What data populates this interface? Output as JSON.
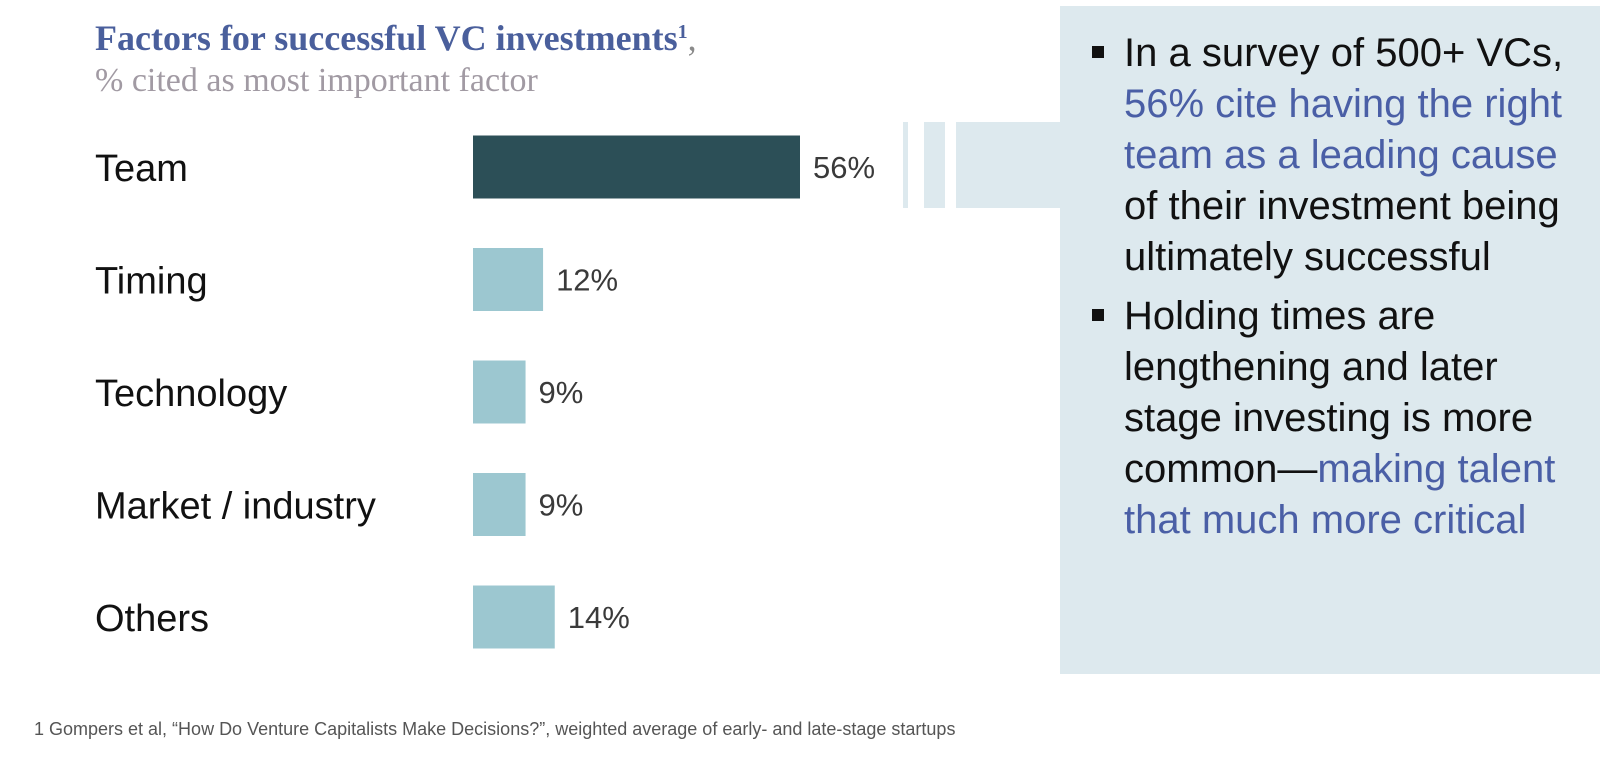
{
  "title": {
    "main": "Factors for successful VC investments",
    "footnote_marker": "1",
    "trailing": ",",
    "subtitle": "% cited as most important factor"
  },
  "chart_data": {
    "type": "bar",
    "orientation": "horizontal",
    "title": "Factors for successful VC investments",
    "subtitle": "% cited as most important factor",
    "categories": [
      "Team",
      "Timing",
      "Technology",
      "Market / industry",
      "Others"
    ],
    "values": [
      56,
      12,
      9,
      9,
      14
    ],
    "value_labels": [
      "56%",
      "12%",
      "9%",
      "9%",
      "14%"
    ],
    "unit": "%",
    "xlim": [
      0,
      56
    ],
    "colors": [
      "#2c4f57",
      "#9cc7d0",
      "#9cc7d0",
      "#9cc7d0",
      "#9cc7d0"
    ],
    "grid": false,
    "legend": "none"
  },
  "callout": {
    "bullets": [
      {
        "parts": [
          {
            "text": "In a survey of 500+ VCs, ",
            "highlight": false
          },
          {
            "text": "56% cite having the right team as a leading cause",
            "highlight": true
          },
          {
            "text": " of their investment being ultimately successful",
            "highlight": false
          }
        ]
      },
      {
        "parts": [
          {
            "text": "Holding times are lengthening and later stage investing is more common—",
            "highlight": false
          },
          {
            "text": "making talent that much more critical",
            "highlight": true
          }
        ]
      }
    ],
    "bg_color": "#dde9ee",
    "highlight_color": "#4a5fa6"
  },
  "footnote": "1 Gompers et al, “How Do Venture Capitalists Make Decisions?”, weighted average of early- and late-stage startups"
}
